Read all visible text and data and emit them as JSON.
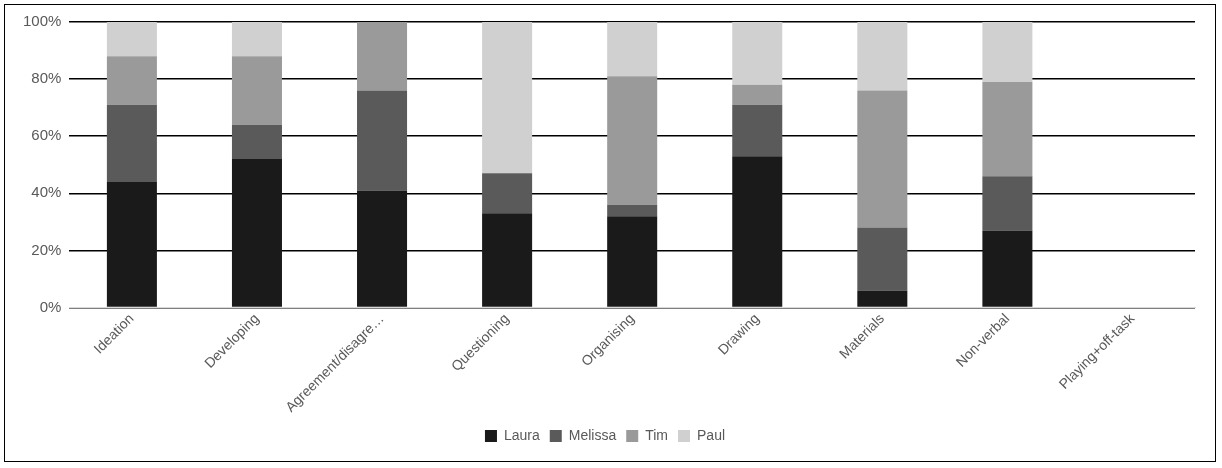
{
  "chart_data": {
    "type": "bar",
    "stacked": true,
    "categories": [
      "Ideation",
      "Developing",
      "Agreement/disagre…",
      "Questioning",
      "Organising",
      "Drawing",
      "Materials",
      "Non-verbal",
      "Playing+off-task"
    ],
    "series": [
      {
        "name": "Laura",
        "color": "#1a1a1a",
        "values": [
          44,
          52,
          41,
          33,
          32,
          53,
          6,
          27,
          0
        ]
      },
      {
        "name": "Melissa",
        "color": "#5a5a5a",
        "values": [
          27,
          12,
          35,
          14,
          4,
          18,
          22,
          19,
          0
        ]
      },
      {
        "name": "Tim",
        "color": "#9a9a9a",
        "values": [
          17,
          24,
          24,
          0,
          45,
          7,
          48,
          33,
          0
        ]
      },
      {
        "name": "Paul",
        "color": "#d0d0d0",
        "values": [
          12,
          12,
          0,
          53,
          19,
          22,
          24,
          21,
          0
        ]
      }
    ],
    "ylim": [
      0,
      100
    ],
    "yticks": [
      {
        "value": 0,
        "label": "0%"
      },
      {
        "value": 20,
        "label": "20%"
      },
      {
        "value": 40,
        "label": "40%"
      },
      {
        "value": 60,
        "label": "60%"
      },
      {
        "value": 80,
        "label": "80%"
      },
      {
        "value": 100,
        "label": "100%"
      }
    ],
    "grid": "y",
    "legend": "bottom"
  }
}
